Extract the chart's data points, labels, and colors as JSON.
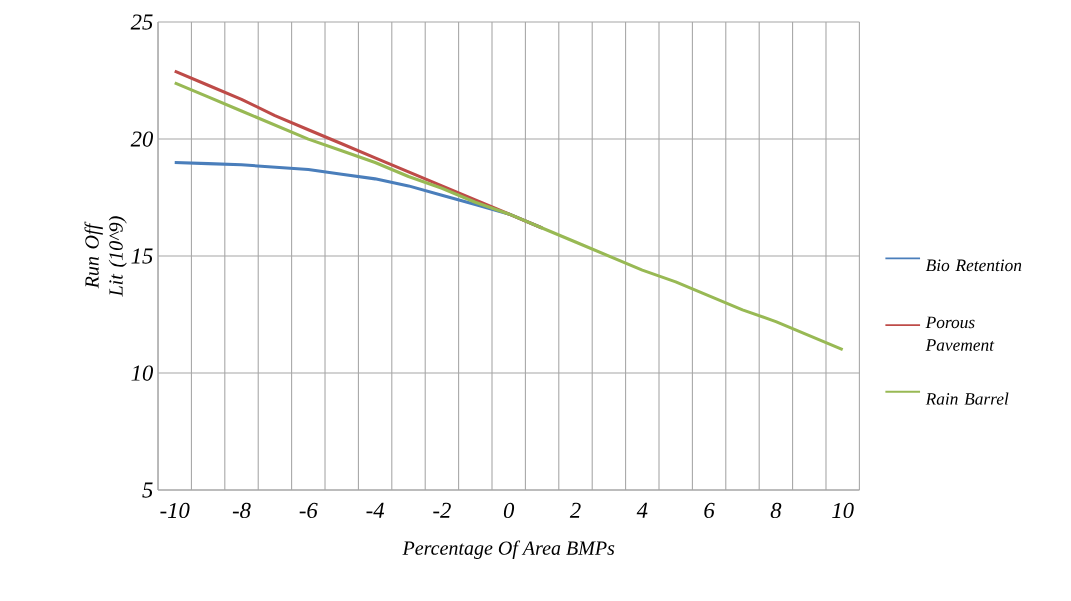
{
  "chart_data": {
    "type": "line",
    "xlabel": "Percentage Of Area BMPs",
    "ylabel": "Run Off Lit  (10^9)",
    "categories": [
      "-10",
      null,
      "-8",
      null,
      "-6",
      null,
      "-4",
      null,
      "-2",
      null,
      "0",
      null,
      "2",
      null,
      "4",
      null,
      "6",
      null,
      "8",
      null,
      "10"
    ],
    "series": [
      {
        "name": "Bio Retention",
        "color": "#4a7ebb",
        "values": [
          19.0,
          18.95,
          18.9,
          18.8,
          18.7,
          18.5,
          18.3,
          18.0,
          17.6,
          17.2,
          16.8,
          16.2,
          null,
          null,
          null,
          null,
          null,
          null,
          null,
          null,
          null
        ]
      },
      {
        "name": "Porous Pavement",
        "color": "#be4b48",
        "values": [
          22.9,
          22.3,
          21.7,
          21.0,
          20.4,
          19.8,
          19.2,
          18.6,
          18.0,
          17.4,
          16.8,
          16.2,
          null,
          null,
          null,
          null,
          null,
          null,
          null,
          null,
          null
        ]
      },
      {
        "name": "Rain Barrel",
        "color": "#98b954",
        "values": [
          22.4,
          21.8,
          21.2,
          20.6,
          20.0,
          19.5,
          19.0,
          18.4,
          17.9,
          17.3,
          16.8,
          16.2,
          15.6,
          15.0,
          14.4,
          13.9,
          13.3,
          12.7,
          12.2,
          11.6,
          11.0
        ]
      }
    ],
    "ylim": [
      5,
      25
    ],
    "yticks": [
      5,
      10,
      15,
      20,
      25
    ],
    "grid": true,
    "legend": "right",
    "line_style": "solid",
    "marker": "none"
  }
}
